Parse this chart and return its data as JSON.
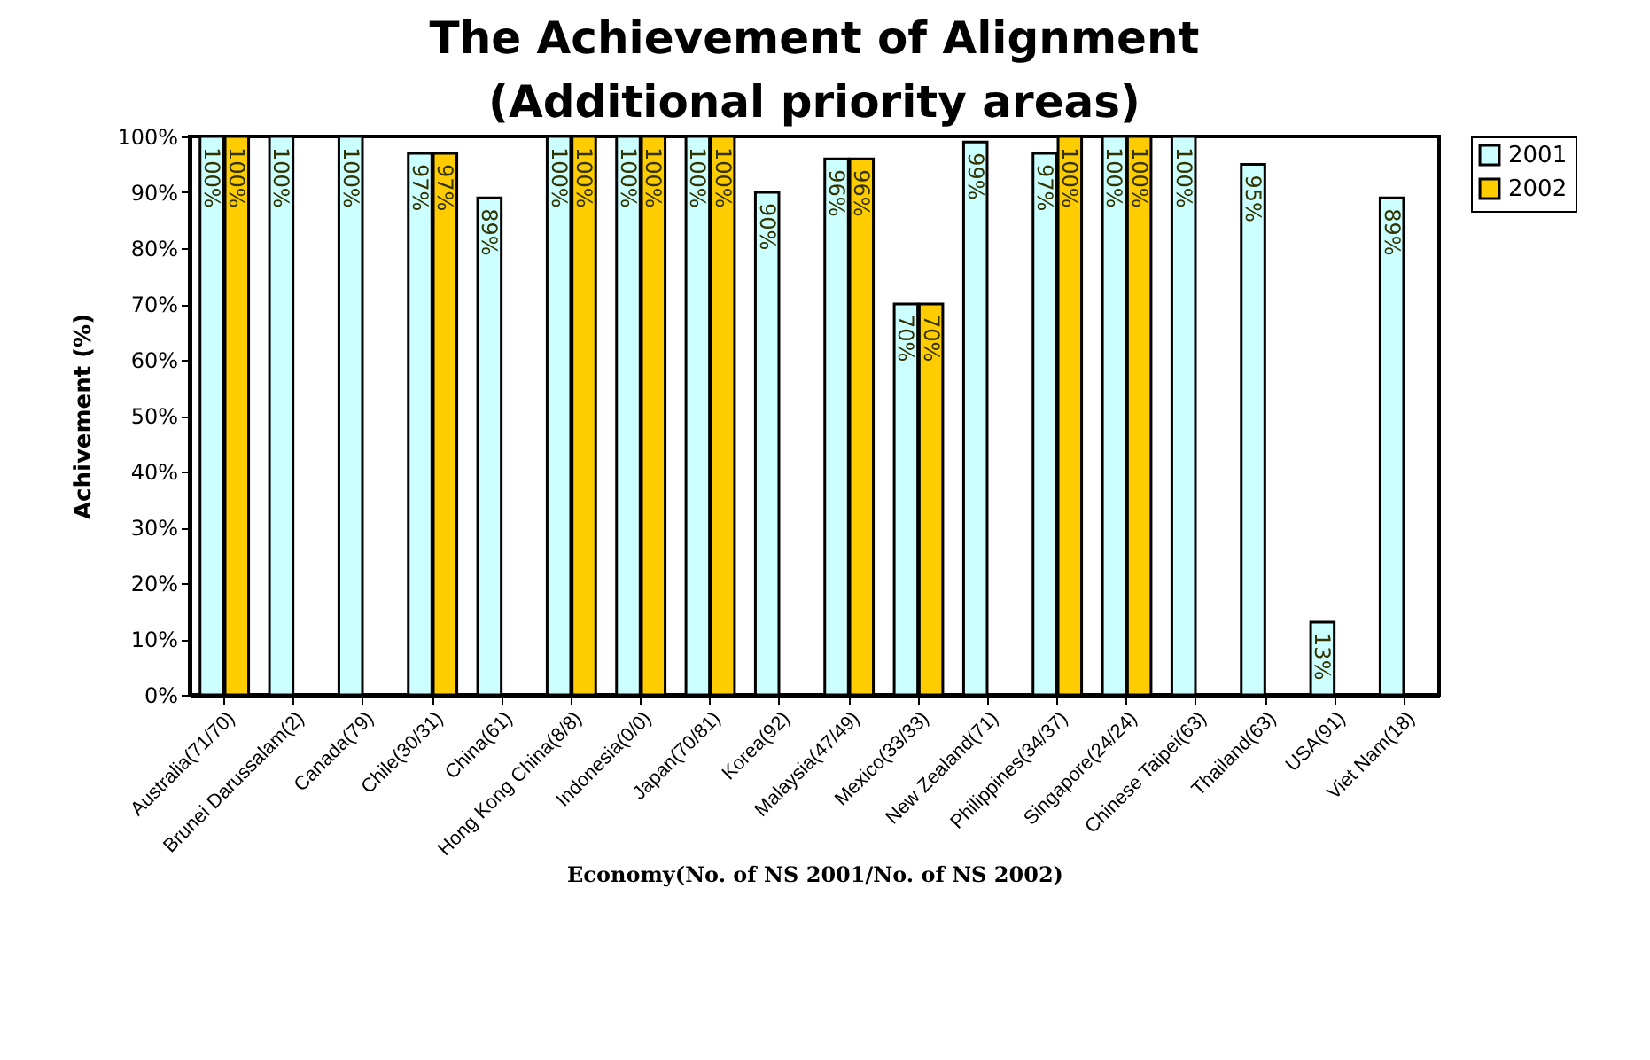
{
  "chart_data": {
    "type": "bar",
    "title": "The Achievement of Alignment\n(Additional priority areas)",
    "xlabel": "Economy(No. of NS 2001/No. of NS 2002)",
    "ylabel": "Achivement (%)",
    "categories": [
      "Australia(71/70)",
      "Brunei Darussalam(2)",
      "Canada(79)",
      "Chile(30/31)",
      "China(61)",
      "Hong Kong China(8/8)",
      "Indonesia(0/0)",
      "Japan(70/81)",
      "Korea(92)",
      "Malaysia(47/49)",
      "Mexico(33/33)",
      "New Zealand(71)",
      "Philippines(34/37)",
      "Singapore(24/24)",
      "Chinese Taipei(63)",
      "Thailand(63)",
      "USA(91)",
      "Viet Nam(18)"
    ],
    "series": [
      {
        "name": "2001",
        "color": "#ccffff",
        "values": [
          100,
          100,
          100,
          97,
          89,
          100,
          100,
          100,
          90,
          96,
          70,
          99,
          97,
          100,
          100,
          95,
          13,
          89
        ],
        "value_labels": [
          "100%",
          "100%",
          "100%",
          "97%",
          "89%",
          "100%",
          "100%",
          "100%",
          "90%",
          "96%",
          "70%",
          "99%",
          "97%",
          "100%",
          "100%",
          "95%",
          "13%",
          "89%"
        ]
      },
      {
        "name": "2002",
        "color": "#ffcc00",
        "values": [
          100,
          null,
          null,
          97,
          null,
          100,
          100,
          100,
          null,
          96,
          70,
          null,
          100,
          100,
          null,
          null,
          null,
          null
        ],
        "value_labels": [
          "100%",
          null,
          null,
          "97%",
          null,
          "100%",
          "100%",
          "100%",
          null,
          "96%",
          "70%",
          null,
          "100%",
          "100%",
          null,
          null,
          null,
          null
        ]
      }
    ],
    "ylim": [
      0,
      100
    ],
    "yticks": [
      {
        "value": 0,
        "label": "0%"
      },
      {
        "value": 10,
        "label": "10%"
      },
      {
        "value": 20,
        "label": "20%"
      },
      {
        "value": 30,
        "label": "30%"
      },
      {
        "value": 40,
        "label": "40%"
      },
      {
        "value": 50,
        "label": "50%"
      },
      {
        "value": 60,
        "label": "60%"
      },
      {
        "value": 70,
        "label": "70%"
      },
      {
        "value": 80,
        "label": "80%"
      },
      {
        "value": 90,
        "label": "90%"
      },
      {
        "value": 100,
        "label": "100%"
      }
    ],
    "legend": "right",
    "grid": false
  }
}
